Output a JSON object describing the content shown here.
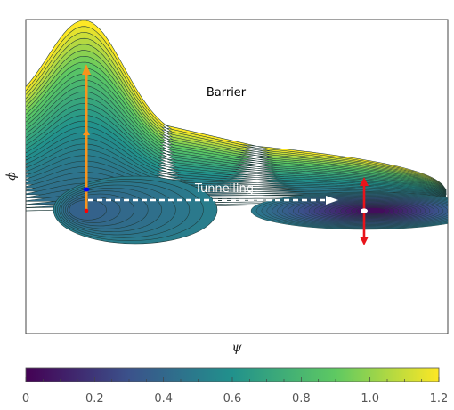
{
  "chart_data": {
    "type": "heatmap",
    "title": "",
    "xlabel": "ψ",
    "ylabel": "ϕ",
    "annotations": [
      {
        "text": "Barrier",
        "color": "#000000"
      },
      {
        "text": "Tunnelling",
        "color": "#ffffff"
      }
    ],
    "colorbar": {
      "min": 0,
      "max": 1.2,
      "ticks": [
        "0",
        "0.2",
        "0.4",
        "0.6",
        "0.8",
        "1.0",
        "1.2"
      ],
      "tick_values": [
        0,
        0.2,
        0.4,
        0.6,
        0.8,
        1.0,
        1.2
      ],
      "colormap": "viridis",
      "colors": [
        "#440154",
        "#3b528b",
        "#21918c",
        "#5ec962",
        "#fde725"
      ]
    },
    "grid": false,
    "contour_line_color": "#1f3b3a",
    "markers": {
      "false_vacuum_color": "#0000ff",
      "start_point_color": "#ff0000",
      "true_vacuum_color": "#ffffff",
      "orange_arrow_color": "#f7941d",
      "red_arrow_color": "#e8141b",
      "tunnel_arrow_color": "#ffffff"
    }
  }
}
